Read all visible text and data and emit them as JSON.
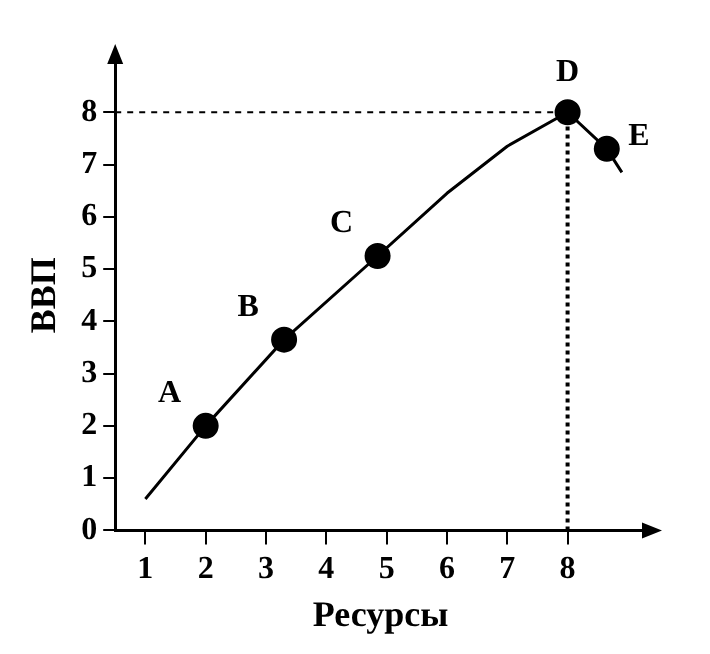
{
  "chart_data": {
    "type": "line",
    "xlabel": "Ресурсы",
    "ylabel": "ВВП",
    "xlim": [
      0.5,
      9.3
    ],
    "ylim": [
      0,
      9
    ],
    "xticks": [
      1,
      2,
      3,
      4,
      5,
      6,
      7,
      8
    ],
    "yticks": [
      0,
      1,
      2,
      3,
      4,
      5,
      6,
      7,
      8
    ],
    "grid": false,
    "legend": false,
    "marker": "none",
    "line_style": "solid",
    "series": [
      {
        "type": "line",
        "color": "#000000",
        "x": [
          1,
          2,
          3.3,
          4.85,
          6,
          7,
          8,
          8.65,
          8.9
        ],
        "values": [
          0.6,
          2,
          3.65,
          5.25,
          6.45,
          7.35,
          8,
          7.3,
          6.85
        ]
      },
      {
        "type": "scatter",
        "color": "#000000",
        "marker": "circle",
        "x": [
          2,
          3.3,
          4.85,
          8,
          8.65
        ],
        "values": [
          2,
          3.65,
          5.25,
          8,
          7.3
        ]
      }
    ],
    "annotations": [
      {
        "text": "A",
        "x": 2,
        "y": 2
      },
      {
        "text": "B",
        "x": 3.3,
        "y": 3.65
      },
      {
        "text": "C",
        "x": 4.85,
        "y": 5.25
      },
      {
        "text": "D",
        "x": 8,
        "y": 8
      },
      {
        "text": "E",
        "x": 8.65,
        "y": 7.3
      }
    ],
    "ref_lines": [
      {
        "axis": "x",
        "value": 8,
        "line_style": "dotted",
        "color": "#000000"
      },
      {
        "axis": "y",
        "value": 8,
        "line_style": "dashed",
        "color": "#000000"
      }
    ]
  }
}
